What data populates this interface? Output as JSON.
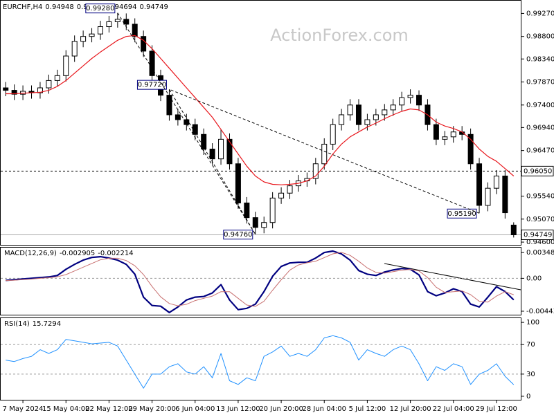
{
  "chart_data": [
    {
      "type": "candlestick",
      "title": "EURCHF,H4",
      "watermark": "ActionForex.com",
      "open": [
        0.9775,
        0.977,
        0.9762,
        0.9768,
        0.9765,
        0.9775,
        0.979,
        0.98,
        0.984,
        0.987,
        0.988,
        0.9885,
        0.99,
        0.991,
        0.9915,
        0.9905,
        0.988,
        0.985,
        0.98,
        0.976,
        0.972,
        0.971,
        0.97,
        0.968,
        0.965,
        0.963,
        0.967,
        0.962,
        0.954,
        0.951,
        0.949,
        0.95,
        0.955,
        0.956,
        0.9575,
        0.9585,
        0.959,
        0.962,
        0.966,
        0.97,
        0.972,
        0.974,
        0.97,
        0.971,
        0.972,
        0.973,
        0.974,
        0.9755,
        0.976,
        0.974,
        0.97,
        0.967,
        0.9675,
        0.9685,
        0.968,
        0.962,
        0.9535,
        0.957,
        0.9595,
        0.94948
      ],
      "high": [
        0.9787,
        0.9782,
        0.978,
        0.978,
        0.9787,
        0.9802,
        0.9812,
        0.9852,
        0.9882,
        0.9892,
        0.9897,
        0.9912,
        0.9922,
        0.9928,
        0.9927,
        0.9917,
        0.9892,
        0.9862,
        0.9812,
        0.9772,
        0.9732,
        0.9722,
        0.9712,
        0.9692,
        0.9662,
        0.969,
        0.9682,
        0.9632,
        0.9552,
        0.9522,
        0.9512,
        0.9562,
        0.9572,
        0.9587,
        0.9597,
        0.9602,
        0.9632,
        0.9672,
        0.9712,
        0.9732,
        0.9752,
        0.9752,
        0.9722,
        0.9732,
        0.9742,
        0.9752,
        0.9767,
        0.9772,
        0.977,
        0.9752,
        0.9712,
        0.9687,
        0.9697,
        0.9697,
        0.9692,
        0.9632,
        0.9582,
        0.9607,
        0.9607,
        0.95004
      ],
      "low": [
        0.9758,
        0.975,
        0.975,
        0.9753,
        0.9753,
        0.9763,
        0.9778,
        0.9788,
        0.9828,
        0.9858,
        0.9868,
        0.9873,
        0.9888,
        0.9898,
        0.9893,
        0.9868,
        0.9838,
        0.9788,
        0.9748,
        0.9708,
        0.9698,
        0.9688,
        0.9668,
        0.9638,
        0.9618,
        0.9618,
        0.9608,
        0.9528,
        0.9498,
        0.9476,
        0.9478,
        0.9488,
        0.9538,
        0.9548,
        0.9563,
        0.9573,
        0.9578,
        0.9608,
        0.9648,
        0.9688,
        0.9708,
        0.9688,
        0.9688,
        0.9698,
        0.9708,
        0.9718,
        0.9728,
        0.9743,
        0.9728,
        0.9688,
        0.9658,
        0.9658,
        0.9663,
        0.9668,
        0.9608,
        0.9519,
        0.9523,
        0.9558,
        0.9508,
        0.94694
      ],
      "close": [
        0.977,
        0.9762,
        0.9768,
        0.9765,
        0.9775,
        0.979,
        0.98,
        0.984,
        0.987,
        0.988,
        0.9885,
        0.99,
        0.991,
        0.9915,
        0.9905,
        0.988,
        0.985,
        0.98,
        0.976,
        0.972,
        0.971,
        0.97,
        0.968,
        0.965,
        0.963,
        0.967,
        0.962,
        0.954,
        0.951,
        0.949,
        0.95,
        0.955,
        0.956,
        0.9575,
        0.9585,
        0.959,
        0.962,
        0.966,
        0.97,
        0.972,
        0.974,
        0.97,
        0.971,
        0.972,
        0.973,
        0.974,
        0.9755,
        0.976,
        0.974,
        0.97,
        0.967,
        0.9675,
        0.9685,
        0.968,
        0.962,
        0.9535,
        0.957,
        0.9595,
        0.952,
        0.94749
      ],
      "overlay": {
        "color": "#e8151b",
        "values": [
          0.9763,
          0.9763,
          0.9764,
          0.9765,
          0.9766,
          0.977,
          0.9778,
          0.979,
          0.9805,
          0.982,
          0.9835,
          0.9848,
          0.986,
          0.9872,
          0.988,
          0.9882,
          0.9872,
          0.9855,
          0.9835,
          0.9815,
          0.9795,
          0.9775,
          0.9755,
          0.9735,
          0.9715,
          0.969,
          0.9665,
          0.964,
          0.9615,
          0.9595,
          0.9583,
          0.9578,
          0.9577,
          0.9578,
          0.958,
          0.9585,
          0.9595,
          0.9615,
          0.964,
          0.966,
          0.9675,
          0.9685,
          0.9695,
          0.9703,
          0.9712,
          0.972,
          0.9727,
          0.9732,
          0.973,
          0.972,
          0.9705,
          0.9697,
          0.9692,
          0.9685,
          0.967,
          0.965,
          0.9635,
          0.9625,
          0.961,
          0.9595
        ]
      },
      "annotations": [
        {
          "value": 0.9928,
          "label": "0.99280"
        },
        {
          "value": 0.9476,
          "label": "0.94760"
        },
        {
          "value": 0.9772,
          "label": "0.97720"
        },
        {
          "value": 0.9519,
          "label": "0.95190"
        }
      ],
      "hline": {
        "value": 0.9605,
        "label": "0.96050"
      },
      "ylim": [
        0.9453,
        0.9953
      ],
      "yticks": [
        {
          "value": 0.9927,
          "label": "0.99270"
        },
        {
          "value": 0.988,
          "label": "0.98800"
        },
        {
          "value": 0.9834,
          "label": "0.98340"
        },
        {
          "value": 0.9787,
          "label": "0.97870"
        },
        {
          "value": 0.974,
          "label": "0.97400"
        },
        {
          "value": 0.9694,
          "label": "0.96940"
        },
        {
          "value": 0.9647,
          "label": "0.96470"
        },
        {
          "value": 0.9554,
          "label": "0.95540"
        },
        {
          "value": 0.9507,
          "label": "0.95070"
        },
        {
          "value": 0.946,
          "label": "0.94600"
        }
      ]
    },
    {
      "type": "line",
      "title": "MACD(12,26,9)",
      "series": [
        {
          "color": "#000080",
          "values": [
            -0.00028,
            -0.00019,
            -9e-05,
            0,
            9e-05,
            0.00019,
            0.00038,
            0.00122,
            0.00188,
            0.00245,
            0.00282,
            0.00292,
            0.00273,
            0.00245,
            0.00188,
            0.00056,
            -0.00254,
            -0.00367,
            -0.00376,
            -0.00461,
            -0.00386,
            -0.00292,
            -0.00254,
            -0.00245,
            -0.00198,
            -0.00085,
            -0.00292,
            -0.00423,
            -0.00405,
            -0.00348,
            -0.00179,
            0.00028,
            0.0016,
            0.00207,
            0.00216,
            0.00216,
            0.00273,
            0.00348,
            0.00367,
            0.00329,
            0.00245,
            0.00104,
            0.00056,
            0.00038,
            0.00085,
            0.00113,
            0.00132,
            0.00122,
            0.00047,
            -0.00179,
            -0.00235,
            -0.00198,
            -0.00141,
            -0.00179,
            -0.00348,
            -0.00386,
            -0.00254,
            -0.00113,
            -0.00179,
            -0.002905
          ]
        },
        {
          "color": "#c87070",
          "values": [
            -0.0003,
            -0.00025,
            -0.00018,
            -0.0001,
            0,
            8e-05,
            0.0002,
            0.0005,
            0.001,
            0.0015,
            0.002,
            0.0025,
            0.0027,
            0.0027,
            0.0024,
            0.0017,
            0.0005,
            -0.0011,
            -0.0025,
            -0.0034,
            -0.0037,
            -0.0035,
            -0.003,
            -0.0027,
            -0.0024,
            -0.0018,
            -0.0018,
            -0.0027,
            -0.0036,
            -0.0038,
            -0.0031,
            -0.0016,
            -0.0002,
            0.0011,
            0.0018,
            0.0021,
            0.0023,
            0.0028,
            0.0033,
            0.0035,
            0.0031,
            0.0023,
            0.0014,
            0.0008,
            0.0007,
            0.0009,
            0.0011,
            0.0012,
            0.001,
            0.0001,
            -0.0012,
            -0.0019,
            -0.0018,
            -0.0017,
            -0.0022,
            -0.0031,
            -0.0032,
            -0.0024,
            -0.0018,
            -0.002214
          ]
        }
      ],
      "levels": [
        0
      ],
      "ylim": [
        -0.005,
        0.00414
      ],
      "yticks": [
        0.003481,
        {
          "value": 0,
          "label": "0.00"
        },
        -0.004436
      ]
    },
    {
      "type": "line",
      "title": "RSI(14)",
      "categories": [
        null,
        null,
        "7 May 2024",
        null,
        null,
        null,
        null,
        "15 May 04:00",
        null,
        null,
        null,
        null,
        "22 May 12:00",
        null,
        null,
        null,
        null,
        "29 May 20:00",
        null,
        null,
        null,
        null,
        "6 Jun 04:00",
        null,
        null,
        null,
        null,
        "13 Jun 12:00",
        null,
        null,
        null,
        null,
        "20 Jun 20:00",
        null,
        null,
        null,
        null,
        "28 Jun 04:00",
        null,
        null,
        null,
        null,
        "5 Jul 12:00",
        null,
        null,
        null,
        null,
        "12 Jul 20:00",
        null,
        null,
        null,
        null,
        "22 Jul 04:00",
        null,
        null,
        null,
        null,
        "29 Jul 12:00",
        null,
        null
      ],
      "series": [
        {
          "color": "#1e90ff",
          "values": [
            49,
            47,
            51,
            54,
            63,
            58,
            63,
            77,
            75,
            73,
            71,
            72,
            73,
            68,
            49,
            30,
            11,
            30,
            30,
            40,
            44,
            33,
            30,
            40,
            25,
            58,
            21,
            16,
            25,
            21,
            54,
            60,
            68,
            54,
            58,
            54,
            63,
            79,
            82,
            79,
            73,
            49,
            63,
            58,
            54,
            63,
            68,
            63,
            44,
            21,
            40,
            35,
            44,
            40,
            16,
            30,
            35,
            44,
            27,
            15.7294
          ]
        }
      ],
      "levels": [
        70,
        30
      ],
      "ylim": [
        -5.7,
        105.7
      ],
      "yticks": [
        100,
        70,
        30,
        0
      ]
    }
  ]
}
